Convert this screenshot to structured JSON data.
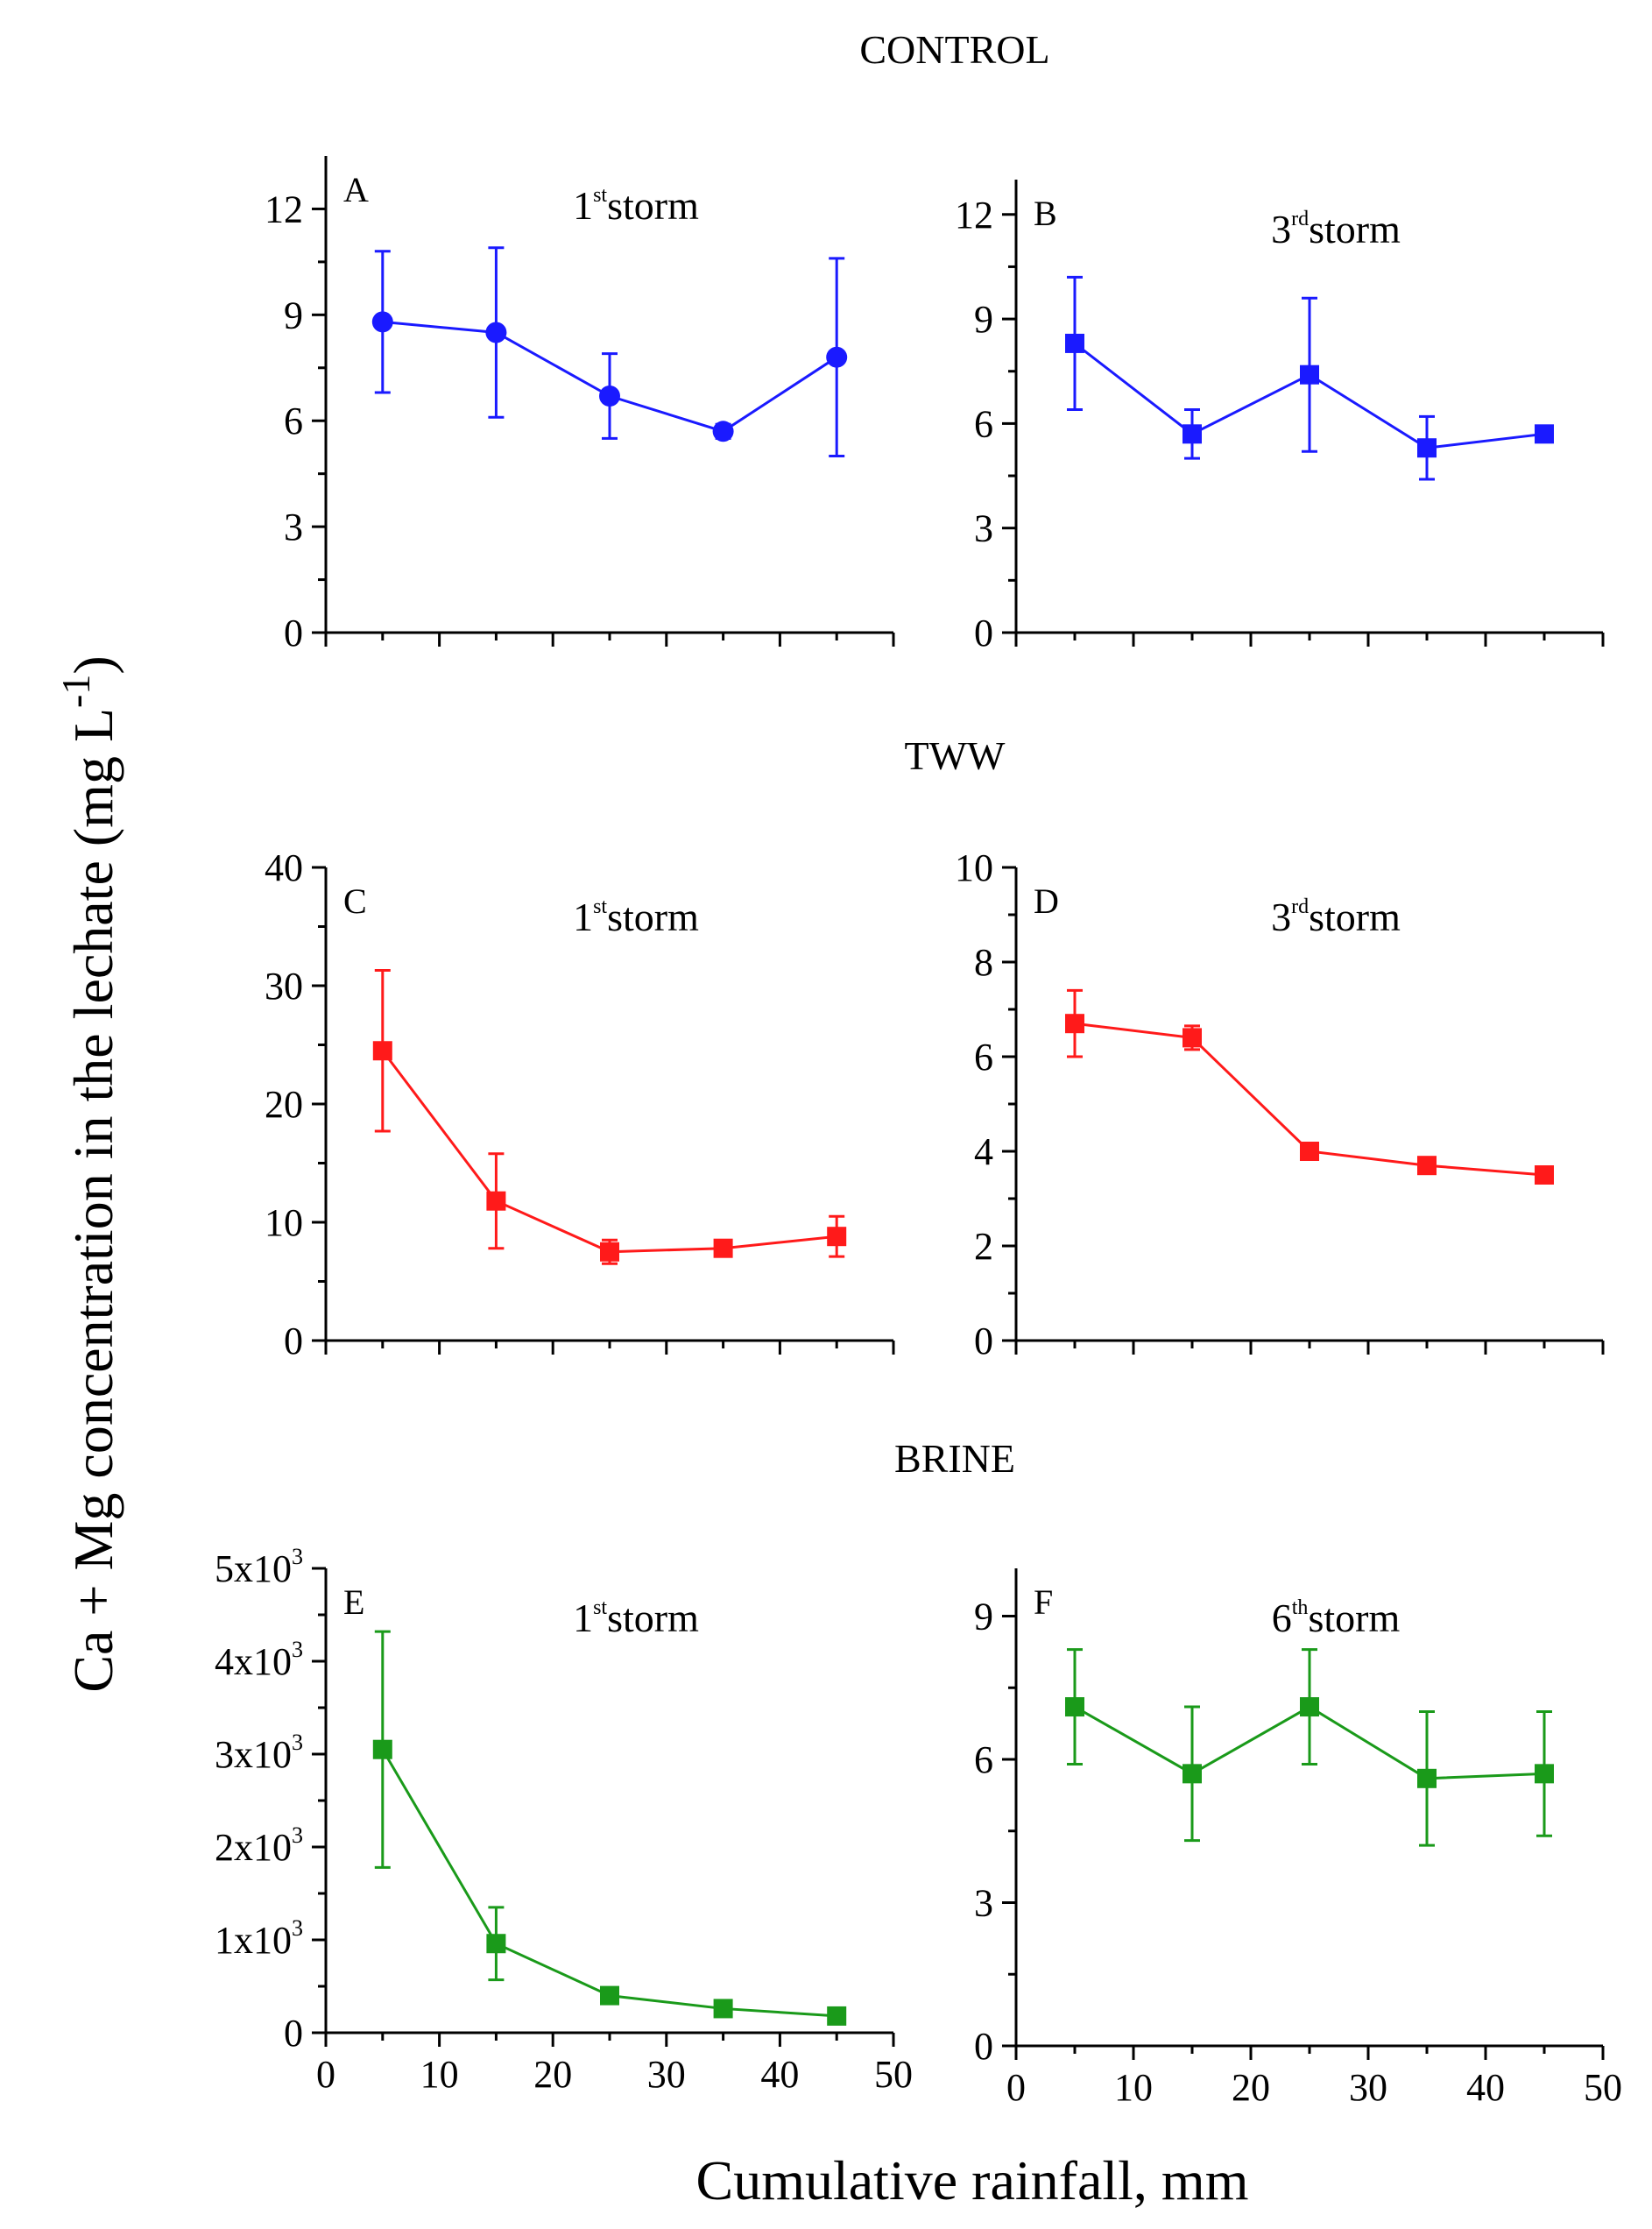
{
  "figure": {
    "y_axis_label": "Ca + Mg concentration in the lechate (mg L",
    "y_axis_label_close": ")",
    "y_axis_sup": "-1",
    "x_axis_label": "Cumulative rainfall, mm",
    "x_ticks": [
      "0",
      "10",
      "20",
      "30",
      "40",
      "50"
    ]
  },
  "groups": [
    {
      "title": "CONTROL"
    },
    {
      "title": "TWW"
    },
    {
      "title": "BRINE"
    }
  ],
  "chart_data": [
    {
      "type": "line",
      "panel": "A",
      "group": "CONTROL",
      "storm_num": "1",
      "storm_sup": "st",
      "storm_word": "storm",
      "color": "#1a1aff",
      "marker": "circle",
      "x": [
        5,
        15,
        25,
        35,
        45
      ],
      "y": [
        8.8,
        8.5,
        6.7,
        5.7,
        7.8
      ],
      "err": [
        2.0,
        2.4,
        1.2,
        0.2,
        2.8
      ],
      "xlim": [
        0,
        50
      ],
      "ylim": [
        0,
        13.5
      ],
      "yticks": [
        0,
        3,
        6,
        9,
        12
      ],
      "ytick_labels": [
        "0",
        "3",
        "6",
        "9",
        "12"
      ]
    },
    {
      "type": "line",
      "panel": "B",
      "group": "CONTROL",
      "storm_num": "3",
      "storm_sup": "rd",
      "storm_word": "storm",
      "color": "#1a1aff",
      "marker": "square",
      "x": [
        5,
        15,
        25,
        35,
        45
      ],
      "y": [
        8.3,
        5.7,
        7.4,
        5.3,
        5.7
      ],
      "err": [
        1.9,
        0.7,
        2.2,
        0.9,
        0.2
      ],
      "xlim": [
        0,
        50
      ],
      "ylim": [
        0,
        13
      ],
      "yticks": [
        0,
        3,
        6,
        9,
        12
      ],
      "ytick_labels": [
        "0",
        "3",
        "6",
        "9",
        "12"
      ]
    },
    {
      "type": "line",
      "panel": "C",
      "group": "TWW",
      "storm_num": "1",
      "storm_sup": "st",
      "storm_word": "storm",
      "color": "#ff1a1a",
      "marker": "square",
      "x": [
        5,
        15,
        25,
        35,
        45
      ],
      "y": [
        24.5,
        11.8,
        7.5,
        7.8,
        8.8
      ],
      "err": [
        6.8,
        4.0,
        1.0,
        0.4,
        1.7
      ],
      "xlim": [
        0,
        50
      ],
      "ylim": [
        0,
        40
      ],
      "yticks": [
        0,
        10,
        20,
        30,
        40
      ],
      "ytick_labels": [
        "0",
        "10",
        "20",
        "30",
        "40"
      ]
    },
    {
      "type": "line",
      "panel": "D",
      "group": "TWW",
      "storm_num": "3",
      "storm_sup": "rd",
      "storm_word": "storm",
      "color": "#ff1a1a",
      "marker": "square",
      "x": [
        5,
        15,
        25,
        35,
        45
      ],
      "y": [
        6.7,
        6.4,
        4.0,
        3.7,
        3.5
      ],
      "err": [
        0.7,
        0.25,
        0.1,
        0.1,
        0.1
      ],
      "xlim": [
        0,
        50
      ],
      "ylim": [
        0,
        10
      ],
      "yticks": [
        0,
        2,
        4,
        6,
        8,
        10
      ],
      "ytick_labels": [
        "0",
        "2",
        "4",
        "6",
        "8",
        "10"
      ]
    },
    {
      "type": "line",
      "panel": "E",
      "group": "BRINE",
      "storm_num": "1",
      "storm_sup": "st",
      "storm_word": "storm",
      "color": "#1a9a1a",
      "marker": "square",
      "x": [
        5,
        15,
        25,
        35,
        45
      ],
      "y": [
        3050,
        960,
        400,
        260,
        180
      ],
      "err": [
        1270,
        390,
        60,
        30,
        20
      ],
      "xlim": [
        0,
        50
      ],
      "ylim": [
        0,
        5000
      ],
      "yticks": [
        0,
        1000,
        2000,
        3000,
        4000,
        5000
      ],
      "ytick_labels": [
        "0",
        "1x10",
        "2x10",
        "3x10",
        "4x10",
        "5x10"
      ],
      "ytick_exp": "3"
    },
    {
      "type": "line",
      "panel": "F",
      "group": "BRINE",
      "storm_num": "6",
      "storm_sup": "th",
      "storm_word": "storm",
      "color": "#1a9a1a",
      "marker": "square",
      "x": [
        5,
        15,
        25,
        35,
        45
      ],
      "y": [
        7.1,
        5.7,
        7.1,
        5.6,
        5.7
      ],
      "err": [
        1.2,
        1.4,
        1.2,
        1.4,
        1.3
      ],
      "xlim": [
        0,
        50
      ],
      "ylim": [
        0,
        10
      ],
      "yticks": [
        0,
        3,
        6,
        9
      ],
      "ytick_labels": [
        "0",
        "3",
        "6",
        "9"
      ]
    }
  ]
}
